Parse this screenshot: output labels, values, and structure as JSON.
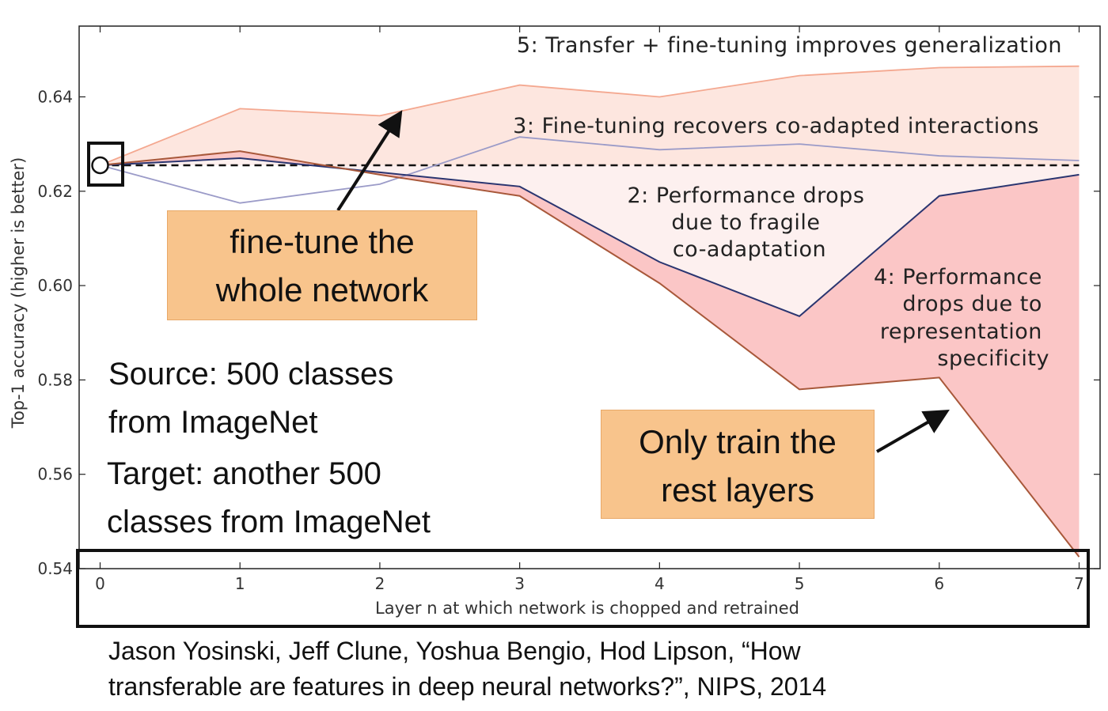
{
  "chart_data": {
    "type": "area",
    "title": "",
    "xlabel": "Layer n at which network is chopped and retrained",
    "ylabel": "Top-1 accuracy (higher is better)",
    "x": [
      0,
      1,
      2,
      3,
      4,
      5,
      6,
      7
    ],
    "xlim": [
      -0.15,
      7.15
    ],
    "ylim": [
      0.54,
      0.655
    ],
    "yticks": [
      0.54,
      0.56,
      0.58,
      0.6,
      0.62,
      0.64
    ],
    "ytick_labels": [
      "0.54",
      "0.56",
      "0.58",
      "0.60",
      "0.62",
      "0.64"
    ],
    "xticks": [
      0,
      1,
      2,
      3,
      4,
      5,
      6,
      7
    ],
    "xtick_labels": [
      "0",
      "1",
      "2",
      "3",
      "4",
      "5",
      "6",
      "7"
    ],
    "baseline": {
      "value": 0.6255,
      "style": "dashed"
    },
    "base_point": {
      "x": 0,
      "y": 0.6255
    },
    "series": [
      {
        "key": "ft_top",
        "values": [
          0.6255,
          0.6375,
          0.636,
          0.6425,
          0.64,
          0.6445,
          0.6462,
          0.6465
        ],
        "color": "#f4a890"
      },
      {
        "key": "ft_mid",
        "values": [
          0.6255,
          0.6175,
          0.6215,
          0.6315,
          0.6288,
          0.63,
          0.6275,
          0.6265
        ],
        "color": "#9b9bc8"
      },
      {
        "key": "frozen_selffer",
        "values": [
          0.6255,
          0.627,
          0.624,
          0.621,
          0.605,
          0.5935,
          0.619,
          0.6235
        ],
        "color": "#2a3570"
      },
      {
        "key": "frozen_transfer",
        "values": [
          0.6255,
          0.6285,
          0.6235,
          0.619,
          0.6005,
          0.578,
          0.5805,
          0.5425
        ],
        "color": "#a8583a"
      }
    ],
    "annotations": [
      {
        "text": "5: Transfer + fine-tuning improves generalization"
      },
      {
        "text": "3: Fine-tuning recovers co-adapted interactions"
      },
      {
        "lines": [
          "2: Performance drops",
          "due to fragile",
          "co-adaptation"
        ]
      },
      {
        "lines": [
          "4: Performance",
          "drops due to",
          "representation",
          "specificity"
        ]
      }
    ]
  },
  "callouts": {
    "fine_tune": [
      "fine-tune the",
      "whole network"
    ],
    "only_train": [
      "Only train the",
      "rest layers"
    ]
  },
  "notes": {
    "source": "Source: 500 classes\nfrom ImageNet",
    "target": "Target: another 500\nclasses from ImageNet"
  },
  "citation": "Jason Yosinski, Jeff Clune, Yoshua Bengio, Hod Lipson, “How\ntransferable are features in deep neural networks?”, NIPS, 2014"
}
